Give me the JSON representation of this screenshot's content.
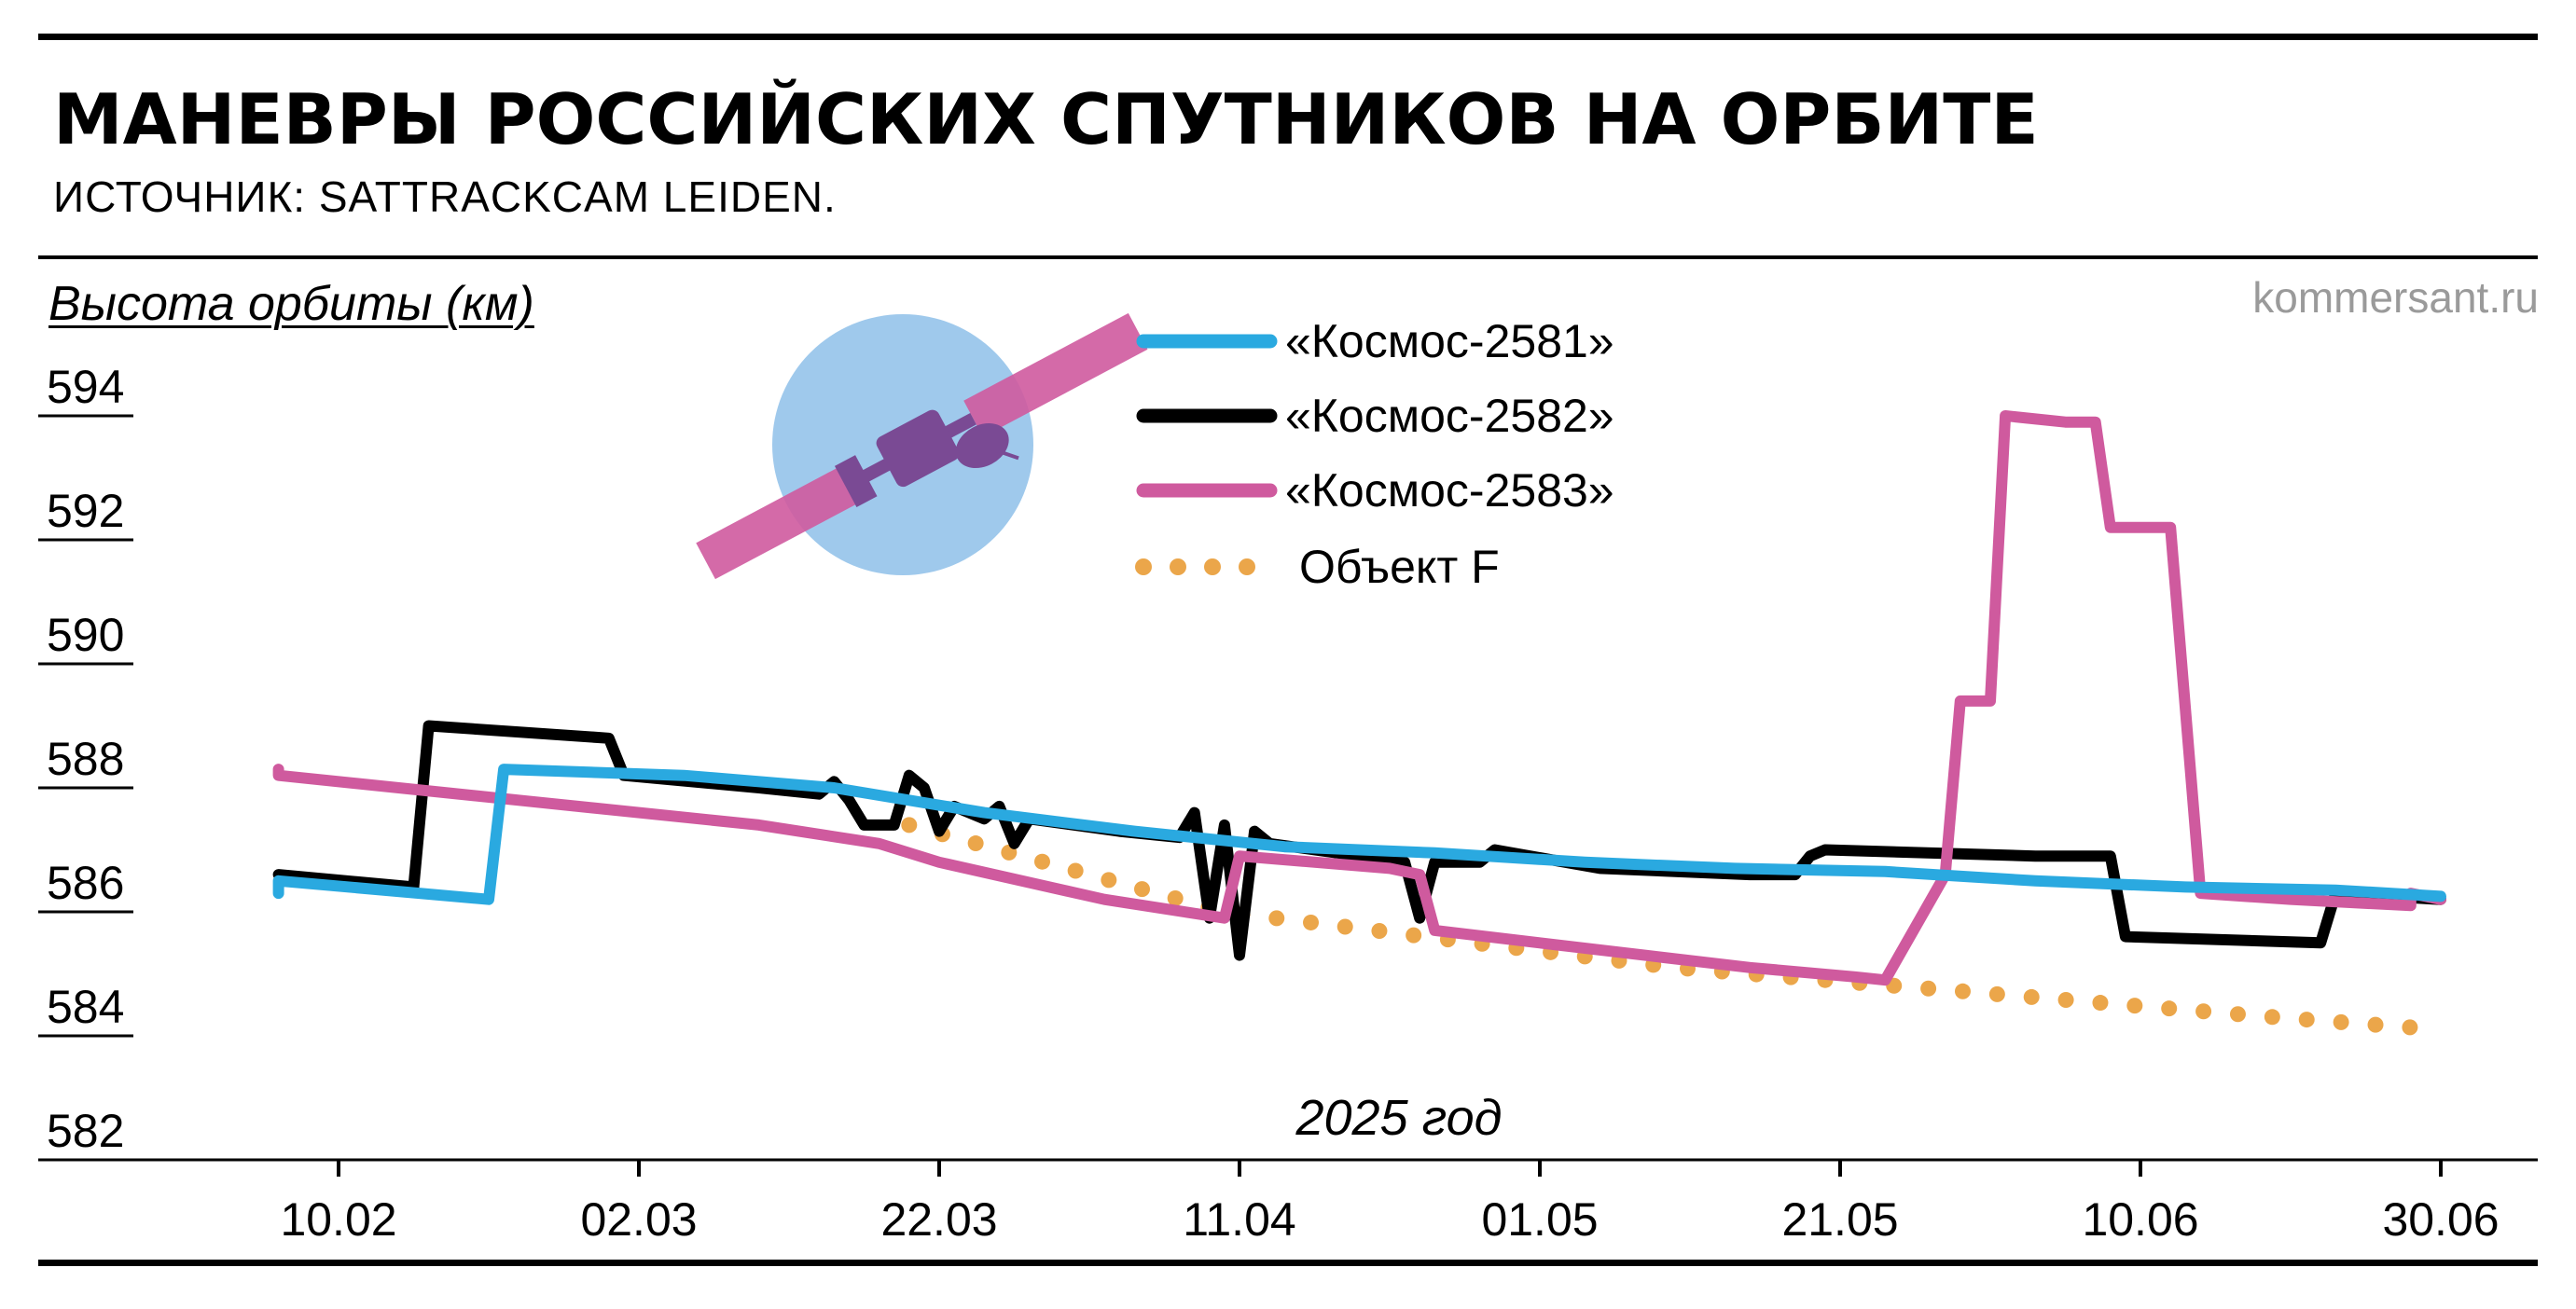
{
  "header": {
    "title": "МАНЕВРЫ РОССИЙСКИХ СПУТНИКОВ НА ОРБИТЕ",
    "subtitle": "ИСТОЧНИК:  SATTRACKCAM LEIDEN.",
    "watermark": "kommersant.ru"
  },
  "colors": {
    "kosmos_2581": "#2aa9e0",
    "kosmos_2582": "#000000",
    "kosmos_2583": "#cf5a9e",
    "object_f": "#eba64a",
    "illustration_circle": "#9fc9ec",
    "illustration_satellite": "#7a4a94"
  },
  "illustration": {
    "icon": "satellite-icon"
  },
  "chart_data": {
    "type": "line",
    "ylabel": "Высота орбиты (км)",
    "xlabel": "2025 год",
    "ylim": [
      582,
      594
    ],
    "yticks": [
      "594",
      "592",
      "590",
      "588",
      "586",
      "584",
      "582"
    ],
    "xticks": [
      "10.02",
      "02.03",
      "22.03",
      "11.04",
      "01.05",
      "21.05",
      "10.06",
      "30.06"
    ],
    "legend_position": "top-center",
    "series": [
      {
        "name": "«Космос-2581»",
        "color_key": "kosmos_2581",
        "style": "solid",
        "points": [
          [
            "2025-02-06",
            586.3
          ],
          [
            "2025-02-06",
            586.5
          ],
          [
            "2025-02-20",
            586.2
          ],
          [
            "2025-02-21",
            588.3
          ],
          [
            "2025-03-05",
            588.2
          ],
          [
            "2025-03-15",
            588.0
          ],
          [
            "2025-03-25",
            587.6
          ],
          [
            "2025-04-04",
            587.3
          ],
          [
            "2025-04-14",
            587.05
          ],
          [
            "2025-04-24",
            586.95
          ],
          [
            "2025-05-04",
            586.8
          ],
          [
            "2025-05-14",
            586.7
          ],
          [
            "2025-05-24",
            586.65
          ],
          [
            "2025-06-03",
            586.5
          ],
          [
            "2025-06-13",
            586.4
          ],
          [
            "2025-06-23",
            586.35
          ],
          [
            "2025-06-30",
            586.25
          ]
        ]
      },
      {
        "name": "«Космос-2582»",
        "color_key": "kosmos_2582",
        "style": "solid",
        "points": [
          [
            "2025-02-06",
            586.6
          ],
          [
            "2025-02-15",
            586.4
          ],
          [
            "2025-02-16",
            589.0
          ],
          [
            "2025-02-28",
            588.8
          ],
          [
            "2025-03-01",
            588.2
          ],
          [
            "2025-03-10",
            588.0
          ],
          [
            "2025-03-14",
            587.9
          ],
          [
            "2025-03-15",
            588.1
          ],
          [
            "2025-03-16",
            587.8
          ],
          [
            "2025-03-17",
            587.4
          ],
          [
            "2025-03-19",
            587.4
          ],
          [
            "2025-03-20",
            588.2
          ],
          [
            "2025-03-21",
            588.0
          ],
          [
            "2025-03-22",
            587.3
          ],
          [
            "2025-03-23",
            587.7
          ],
          [
            "2025-03-25",
            587.5
          ],
          [
            "2025-03-26",
            587.7
          ],
          [
            "2025-03-27",
            587.1
          ],
          [
            "2025-03-28",
            587.5
          ],
          [
            "2025-04-03",
            587.3
          ],
          [
            "2025-04-07",
            587.2
          ],
          [
            "2025-04-08",
            587.6
          ],
          [
            "2025-04-09",
            585.9
          ],
          [
            "2025-04-10",
            587.4
          ],
          [
            "2025-04-11",
            585.3
          ],
          [
            "2025-04-12",
            587.3
          ],
          [
            "2025-04-13",
            587.1
          ],
          [
            "2025-04-22",
            586.8
          ],
          [
            "2025-04-23",
            585.9
          ],
          [
            "2025-04-24",
            586.8
          ],
          [
            "2025-04-27",
            586.8
          ],
          [
            "2025-04-28",
            587.0
          ],
          [
            "2025-05-05",
            586.7
          ],
          [
            "2025-05-15",
            586.6
          ],
          [
            "2025-05-18",
            586.6
          ],
          [
            "2025-05-19",
            586.9
          ],
          [
            "2025-05-20",
            587.0
          ],
          [
            "2025-06-03",
            586.9
          ],
          [
            "2025-06-08",
            586.9
          ],
          [
            "2025-06-09",
            585.6
          ],
          [
            "2025-06-22",
            585.5
          ],
          [
            "2025-06-23",
            586.3
          ],
          [
            "2025-06-30",
            586.2
          ]
        ]
      },
      {
        "name": "«Космос-2583»",
        "color_key": "kosmos_2583",
        "style": "solid",
        "points": [
          [
            "2025-02-06",
            588.3
          ],
          [
            "2025-02-06",
            588.2
          ],
          [
            "2025-02-22",
            587.8
          ],
          [
            "2025-03-10",
            587.4
          ],
          [
            "2025-03-18",
            587.1
          ],
          [
            "2025-03-22",
            586.8
          ],
          [
            "2025-04-02",
            586.2
          ],
          [
            "2025-04-10",
            585.9
          ],
          [
            "2025-04-11",
            586.9
          ],
          [
            "2025-04-21",
            586.7
          ],
          [
            "2025-04-23",
            586.6
          ],
          [
            "2025-04-24",
            585.7
          ],
          [
            "2025-05-01",
            585.5
          ],
          [
            "2025-05-08",
            585.3
          ],
          [
            "2025-05-15",
            585.1
          ],
          [
            "2025-05-22",
            584.95
          ],
          [
            "2025-05-24",
            584.9
          ],
          [
            "2025-05-28",
            586.6
          ],
          [
            "2025-05-29",
            589.4
          ],
          [
            "2025-05-31",
            589.4
          ],
          [
            "2025-06-01",
            594.0
          ],
          [
            "2025-06-05",
            593.9
          ],
          [
            "2025-06-07",
            593.9
          ],
          [
            "2025-06-08",
            592.2
          ],
          [
            "2025-06-12",
            592.2
          ],
          [
            "2025-06-14",
            586.3
          ],
          [
            "2025-06-20",
            586.2
          ],
          [
            "2025-06-28",
            586.1
          ],
          [
            "2025-06-28",
            586.3
          ],
          [
            "2025-06-30",
            586.2
          ]
        ]
      },
      {
        "name": "Объект F",
        "color_key": "object_f",
        "style": "dotted",
        "points": [
          [
            "2025-03-20",
            587.4
          ],
          [
            "2025-04-01",
            586.6
          ],
          [
            "2025-04-10",
            586.0
          ],
          [
            "2025-04-20",
            585.7
          ],
          [
            "2025-04-30",
            585.4
          ],
          [
            "2025-05-10",
            585.1
          ],
          [
            "2025-05-20",
            584.9
          ],
          [
            "2025-05-30",
            584.7
          ],
          [
            "2025-06-09",
            584.5
          ],
          [
            "2025-06-19",
            584.3
          ],
          [
            "2025-06-30",
            584.1
          ]
        ]
      }
    ]
  }
}
